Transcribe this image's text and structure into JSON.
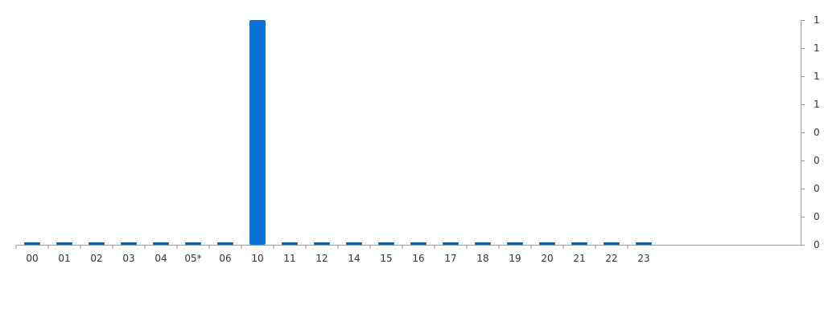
{
  "chart_data": {
    "type": "bar",
    "categories": [
      "00",
      "01",
      "02",
      "03",
      "04",
      "05*",
      "06",
      "10",
      "11",
      "12",
      "14",
      "15",
      "16",
      "17",
      "18",
      "19",
      "20",
      "21",
      "22",
      "23"
    ],
    "values": [
      0,
      0,
      0,
      0,
      0,
      0,
      0,
      1,
      0,
      0,
      0,
      0,
      0,
      0,
      0,
      0,
      0,
      0,
      0,
      0
    ],
    "title": "",
    "xlabel": "",
    "ylabel": "",
    "ylim": [
      0,
      1
    ],
    "y_tick_labels": [
      "0",
      "0",
      "0",
      "0",
      "0",
      "1",
      "1",
      "1",
      "1"
    ],
    "y_axis_position": "right",
    "grid": false,
    "legend": "none",
    "colors": {
      "bar_active": "#0a73d9",
      "bar_zero": "#0d5fa8",
      "axis": "#999999",
      "text": "#333333"
    }
  }
}
